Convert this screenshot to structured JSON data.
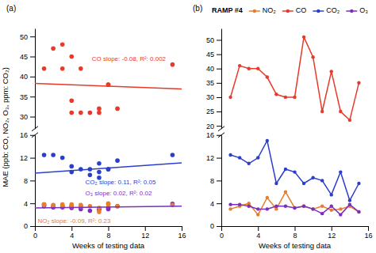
{
  "chart_data": [
    {
      "type": "scatter",
      "title": "(a)",
      "x_label": "Weeks of testing data",
      "y_label": "MAE (ppb: CO, NO₂, O₃, ppm: CO₂)",
      "xlim": [
        0,
        16
      ],
      "xticks": [
        0,
        4,
        8,
        12,
        16
      ],
      "ylim": [
        0,
        16
      ],
      "yticks": [
        0,
        4,
        8,
        12,
        16
      ],
      "y2lim": [
        27,
        52
      ],
      "y2ticks": [
        30,
        35,
        40,
        45,
        50
      ],
      "series": [
        {
          "color": "#e8392a",
          "axis": "y2",
          "x": [
            1,
            2,
            3,
            3,
            4,
            4,
            4,
            5,
            5,
            6,
            7,
            7,
            8,
            8,
            9,
            15
          ],
          "values": [
            42,
            47,
            48,
            42,
            45,
            34,
            31,
            42,
            31,
            31,
            32,
            31,
            38,
            38,
            32,
            43
          ]
        },
        {
          "type": "line",
          "color": "#e8392a",
          "axis": "y2",
          "x": [
            0,
            16
          ],
          "values": [
            38.3,
            36.9
          ]
        },
        {
          "color": "#2b3fcc",
          "x": [
            1,
            2,
            3,
            4,
            4,
            5,
            6,
            6,
            7,
            7,
            7,
            8,
            8,
            9,
            15
          ],
          "values": [
            12.5,
            12.5,
            12,
            10.5,
            9.5,
            10,
            10,
            9,
            8.5,
            9.5,
            11,
            10,
            10,
            11.5,
            12.5
          ]
        },
        {
          "color": "#7b2fbe",
          "x": [
            1,
            1,
            2,
            2,
            3,
            3,
            4,
            4,
            5,
            5,
            6,
            7,
            7,
            8,
            8,
            9,
            15
          ],
          "values": [
            3.8,
            3.5,
            3.5,
            3.3,
            3.3,
            3.5,
            3.2,
            3.5,
            3.5,
            3.0,
            2.7,
            3.0,
            3.0,
            3.2,
            3.0,
            3.5,
            3.9
          ]
        },
        {
          "color": "#e87d2a",
          "x": [
            1,
            1,
            2,
            2,
            3,
            3,
            4,
            4,
            5,
            5,
            6,
            7,
            7,
            8,
            8,
            9,
            15
          ],
          "values": [
            3.8,
            3.7,
            3.7,
            3.5,
            3.8,
            3.5,
            3.5,
            3.8,
            3.7,
            3.5,
            3.5,
            2.5,
            3.2,
            3.8,
            4.0,
            3.5,
            3.7
          ]
        },
        {
          "type": "line",
          "color": "#2b3fcc",
          "x": [
            0,
            16
          ],
          "values": [
            9.3,
            11.1
          ]
        },
        {
          "type": "line",
          "color": "#7b2fbe",
          "x": [
            0,
            16
          ],
          "values": [
            3.2,
            3.52
          ]
        }
      ],
      "annotations": [
        {
          "text": "CO slope: -0.08, R²: 0.002",
          "x": 6.2,
          "y": 44.0,
          "axis": "y2",
          "color": "#e8392a"
        },
        {
          "text": "CO₂ slope: 0.11, R²: 0.05",
          "x": 5.5,
          "y": 7.3,
          "color": "#2b3fcc"
        },
        {
          "text": "O₃ slope: 0.02, R²: 0.02",
          "x": 5.5,
          "y": 5.4,
          "color": "#7b2fbe"
        },
        {
          "text": "NO₂ slope: -0.09, R²: 0.23",
          "x": 0.3,
          "y": 0.5,
          "color": "#e87d2a"
        }
      ]
    },
    {
      "type": "line",
      "marker": "circle",
      "title": "(b)",
      "x_label": "Weeks of testing data",
      "xlim": [
        0,
        16
      ],
      "xticks": [
        0,
        4,
        8,
        12,
        16
      ],
      "ylim": [
        0,
        16
      ],
      "yticks": [
        0,
        4,
        8,
        12,
        16
      ],
      "y2lim": [
        19,
        54
      ],
      "y2ticks": [
        20,
        25,
        30,
        35,
        40,
        45,
        50
      ],
      "x": [
        1,
        2,
        3,
        4,
        5,
        6,
        7,
        8,
        9,
        10,
        11,
        12,
        13,
        14,
        15
      ],
      "legend": "top",
      "legend_title": "RAMP #4",
      "series": [
        {
          "name": "NO₂",
          "color": "#e87d2a",
          "values": [
            3.0,
            3.5,
            4.0,
            2.0,
            5.0,
            3.0,
            6.0,
            3.2,
            3.5,
            3.0,
            3.5,
            2.8,
            3.0,
            3.5,
            2.5
          ]
        },
        {
          "name": "CO",
          "color": "#e8392a",
          "axis": "y2",
          "values": [
            30,
            41,
            40,
            40,
            37,
            31,
            30,
            30,
            51,
            44,
            25,
            39,
            25,
            22,
            35
          ]
        },
        {
          "name": "CO₂",
          "color": "#2b3fcc",
          "values": [
            12.5,
            12,
            11,
            12,
            15,
            7.5,
            10,
            9.5,
            7.5,
            8.5,
            8,
            5.5,
            9.5,
            4.5,
            7.5
          ]
        },
        {
          "name": "O₃",
          "color": "#7b2fbe",
          "values": [
            3.8,
            3.8,
            3.5,
            3.0,
            3.0,
            3.5,
            3.5,
            3.2,
            3.5,
            3.0,
            2.2,
            3.5,
            2.0,
            3.8,
            2.5
          ]
        }
      ]
    }
  ]
}
